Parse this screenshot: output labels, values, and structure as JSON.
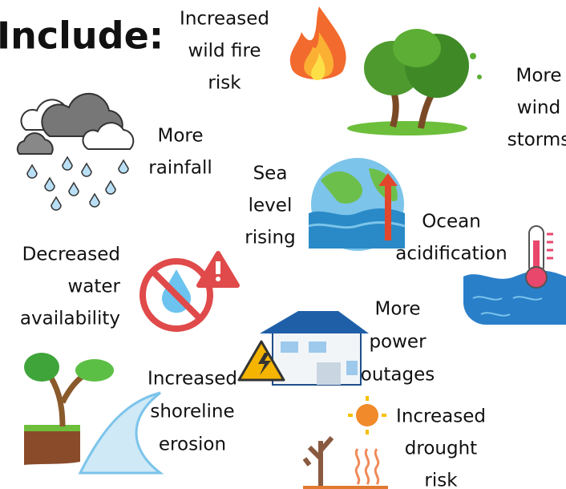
{
  "header": {
    "title": "Include:"
  },
  "items": [
    {
      "lines": [
        "Increased",
        "wild fire",
        "risk"
      ]
    },
    {
      "lines": [
        "More",
        "wind",
        "storms"
      ]
    },
    {
      "lines": [
        "More",
        "rainfall"
      ]
    },
    {
      "lines": [
        "Sea",
        "level",
        "rising"
      ]
    },
    {
      "lines": [
        "Ocean",
        "acidification"
      ]
    },
    {
      "lines": [
        "Decreased",
        "water",
        "availability"
      ]
    },
    {
      "lines": [
        "More",
        "power",
        "outages"
      ]
    },
    {
      "lines": [
        "Increased",
        "shoreline",
        "erosion"
      ]
    },
    {
      "lines": [
        "Increased",
        "drought",
        "risk"
      ]
    }
  ]
}
